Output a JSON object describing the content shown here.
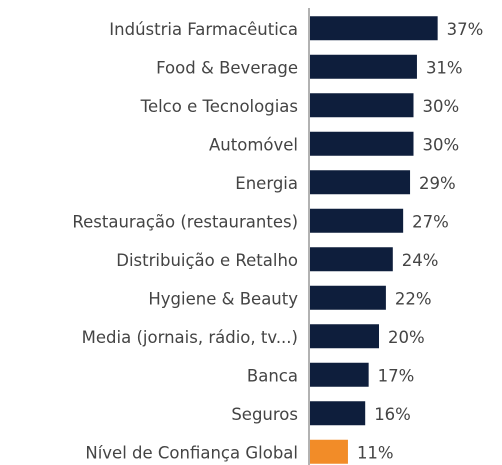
{
  "chart_data": {
    "type": "barh",
    "categories": [
      "Indústria Farmacêutica",
      "Food & Beverage",
      "Telco e Tecnologias",
      "Automóvel",
      "Energia",
      "Restauração (restaurantes)",
      "Distribuição e Retalho",
      "Hygiene & Beauty",
      "Media (jornais, rádio, tv...)",
      "Banca",
      "Seguros",
      "Nível de Confiança Global"
    ],
    "values": [
      37,
      31,
      30,
      30,
      29,
      27,
      24,
      22,
      20,
      17,
      16,
      11
    ],
    "value_labels": [
      "37%",
      "31%",
      "30%",
      "30%",
      "29%",
      "27%",
      "24%",
      "22%",
      "20%",
      "17%",
      "16%",
      "11%"
    ],
    "colors": [
      "#0e1e3c",
      "#0e1e3c",
      "#0e1e3c",
      "#0e1e3c",
      "#0e1e3c",
      "#0e1e3c",
      "#0e1e3c",
      "#0e1e3c",
      "#0e1e3c",
      "#0e1e3c",
      "#0e1e3c",
      "#f28c28"
    ],
    "xlim": [
      0,
      40
    ]
  }
}
